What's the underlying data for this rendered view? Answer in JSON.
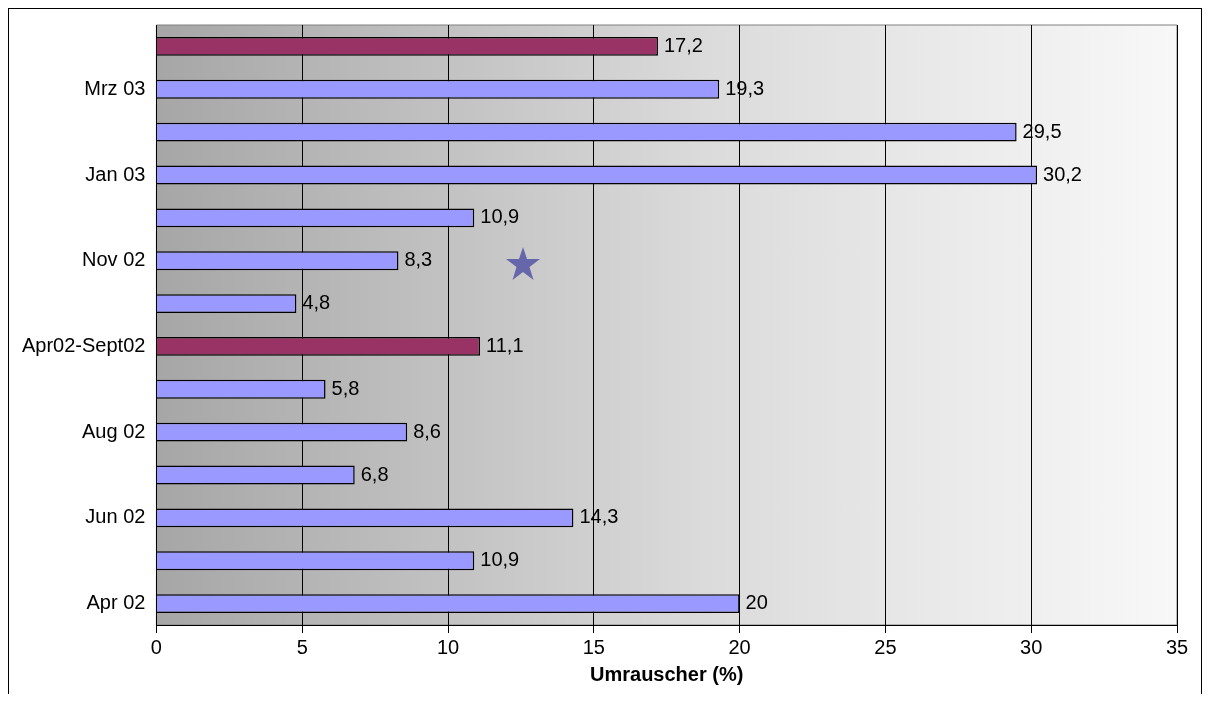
{
  "chart_data": {
    "type": "bar",
    "orientation": "horizontal",
    "xlabel": "Umrauscher (%)",
    "categories": [
      null,
      "Mrz 03",
      null,
      "Jan 03",
      null,
      "Nov 02",
      null,
      "Apr02-Sept02",
      null,
      "Aug 02",
      null,
      "Jun 02",
      null,
      "Apr 02"
    ],
    "values": [
      17.2,
      19.3,
      29.5,
      30.2,
      10.9,
      8.3,
      4.8,
      11.1,
      5.8,
      8.6,
      6.8,
      14.3,
      10.9,
      20
    ],
    "colors": [
      "#993366",
      "#9999ff",
      "#9999ff",
      "#9999ff",
      "#9999ff",
      "#9999ff",
      "#9999ff",
      "#993366",
      "#9999ff",
      "#9999ff",
      "#9999ff",
      "#9999ff",
      "#9999ff",
      "#9999ff"
    ],
    "value_labels": [
      "17,2",
      "19,3",
      "29,5",
      "30,2",
      "10,9",
      "8,3",
      "4,8",
      "11,1",
      "5,8",
      "8,6",
      "6,8",
      "14,3",
      "10,9",
      "20"
    ],
    "xlim": [
      0,
      35
    ],
    "xticks": [
      0,
      5,
      10,
      15,
      20,
      25,
      30,
      35
    ],
    "grid": "x",
    "legend": false
  }
}
